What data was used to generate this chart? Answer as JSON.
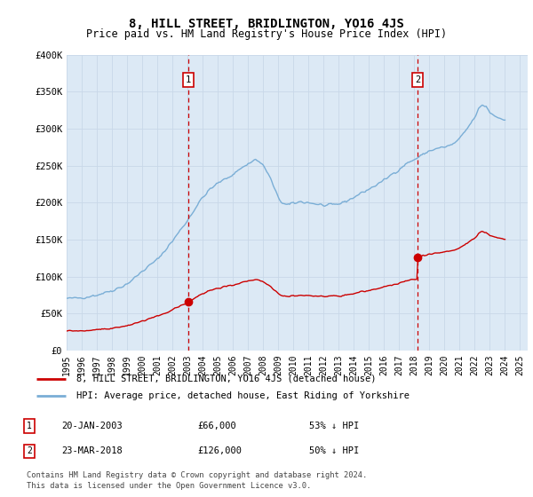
{
  "title": "8, HILL STREET, BRIDLINGTON, YO16 4JS",
  "subtitle": "Price paid vs. HM Land Registry's House Price Index (HPI)",
  "background_color": "#ffffff",
  "plot_bg_color": "#dce9f5",
  "grid_color": "#c8d8e8",
  "ylim": [
    0,
    400000
  ],
  "yticks": [
    0,
    50000,
    100000,
    150000,
    200000,
    250000,
    300000,
    350000,
    400000
  ],
  "ytick_labels": [
    "£0",
    "£50K",
    "£100K",
    "£150K",
    "£200K",
    "£250K",
    "£300K",
    "£350K",
    "£400K"
  ],
  "xlim_start": 1995.0,
  "xlim_end": 2025.5,
  "legend_line1": "8, HILL STREET, BRIDLINGTON, YO16 4JS (detached house)",
  "legend_line2": "HPI: Average price, detached house, East Riding of Yorkshire",
  "line1_color": "#cc0000",
  "line2_color": "#7aaed6",
  "marker1_date": 2003.05,
  "marker1_price": 66000,
  "marker1_label": "1",
  "marker1_text": "20-JAN-2003",
  "marker1_price_text": "£66,000",
  "marker1_hpi_text": "53% ↓ HPI",
  "marker2_date": 2018.22,
  "marker2_price": 126000,
  "marker2_label": "2",
  "marker2_text": "23-MAR-2018",
  "marker2_price_text": "£126,000",
  "marker2_hpi_text": "50% ↓ HPI",
  "footer_line1": "Contains HM Land Registry data © Crown copyright and database right 2024.",
  "footer_line2": "This data is licensed under the Open Government Licence v3.0."
}
